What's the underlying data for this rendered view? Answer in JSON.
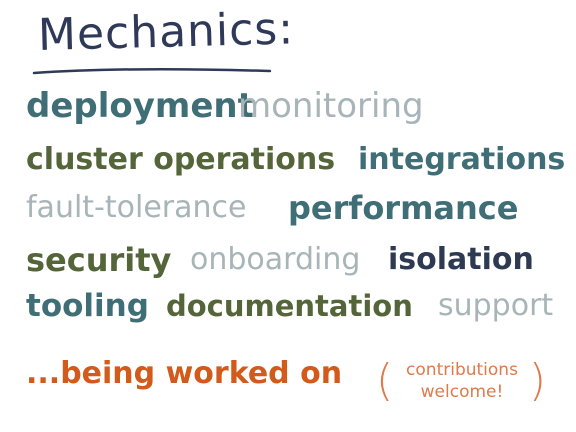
{
  "title": "Mechanics:",
  "rows": [
    {
      "words": [
        {
          "text": "deployment",
          "style": "teal-bold"
        },
        {
          "text": "monitoring",
          "style": "gray"
        }
      ]
    },
    {
      "words": [
        {
          "text": "cluster operations",
          "style": "olive-bold"
        },
        {
          "text": "integrations",
          "style": "teal-bold"
        }
      ]
    },
    {
      "words": [
        {
          "text": "fault-tolerance",
          "style": "gray"
        },
        {
          "text": "performance",
          "style": "teal-bold"
        }
      ]
    },
    {
      "words": [
        {
          "text": "security",
          "style": "olive-bold"
        },
        {
          "text": "onboarding",
          "style": "gray"
        },
        {
          "text": "isolation",
          "style": "navy-bold"
        }
      ]
    },
    {
      "words": [
        {
          "text": "tooling",
          "style": "teal-bold"
        },
        {
          "text": "documentation",
          "style": "olive-bold"
        },
        {
          "text": "support",
          "style": "gray"
        }
      ]
    }
  ],
  "status": "...being worked on",
  "note": {
    "line1": "contributions",
    "line2": "welcome!"
  },
  "colors": {
    "navy": "#2d3a52",
    "teal": "#3f6e77",
    "olive": "#55653a",
    "gray": "#a8b5b8",
    "orange": "#d25a1b"
  }
}
